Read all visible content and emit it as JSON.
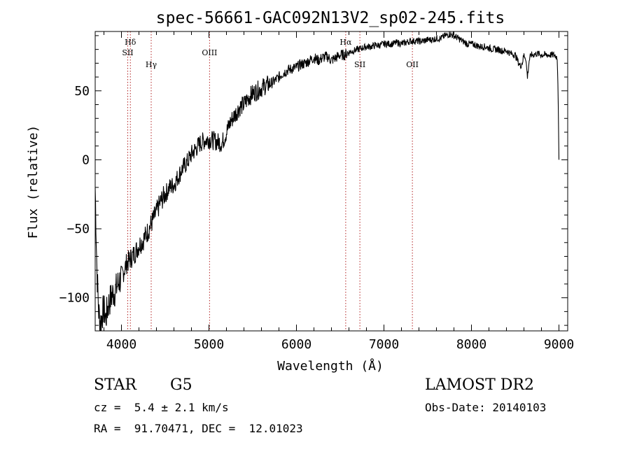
{
  "chart_data": {
    "type": "line",
    "title": "spec-56661-GAC092N13V2_sp02-245.fits",
    "xlabel": "Wavelength (Å)",
    "ylabel": "Flux (relative)",
    "xlim": [
      3700,
      9100
    ],
    "ylim": [
      -124,
      93
    ],
    "x_ticks": [
      4000,
      5000,
      6000,
      7000,
      8000,
      9000
    ],
    "y_ticks": [
      -100,
      -50,
      0,
      50
    ],
    "x_tick_labels": [
      "4000",
      "5000",
      "6000",
      "7000",
      "8000",
      "9000"
    ],
    "y_tick_labels": [
      "−100",
      "−50",
      "0",
      "50"
    ],
    "grid": false,
    "line_color": "#000000",
    "marker_line_color": "#b22222",
    "series": [
      {
        "x": [
          3700,
          3720,
          3740,
          3760,
          3780,
          3800,
          3820,
          3850,
          3880,
          3900,
          3930,
          3960,
          4000,
          4030,
          4060,
          4100,
          4150,
          4200,
          4250,
          4300,
          4350,
          4400,
          4450,
          4500,
          4550,
          4600,
          4650,
          4700,
          4750,
          4800,
          4850,
          4900,
          4950,
          5000,
          5050,
          5100,
          5150,
          5200,
          5250,
          5300,
          5350,
          5400,
          5450,
          5500,
          5550,
          5600,
          5650,
          5700,
          5750,
          5800,
          5850,
          5900,
          5950,
          6000,
          6050,
          6100,
          6150,
          6200,
          6250,
          6300,
          6350,
          6400,
          6450,
          6500,
          6550,
          6600,
          6650,
          6700,
          6750,
          6800,
          6850,
          6900,
          6950,
          7000,
          7050,
          7100,
          7150,
          7200,
          7250,
          7300,
          7350,
          7400,
          7450,
          7500,
          7550,
          7600,
          7650,
          7700,
          7750,
          7800,
          7850,
          7900,
          7950,
          8000,
          8050,
          8100,
          8150,
          8200,
          8250,
          8300,
          8350,
          8400,
          8450,
          8500,
          8540,
          8560,
          8580,
          8600,
          8620,
          8640,
          8660,
          8680,
          8700,
          8750,
          8800,
          8850,
          8900,
          8950,
          8980,
          8990,
          9000
        ],
        "y": [
          -20,
          -80,
          -110,
          -118,
          -112,
          -108,
          -115,
          -105,
          -100,
          -97,
          -95,
          -90,
          -85,
          -80,
          -75,
          -72,
          -68,
          -62,
          -58,
          -52,
          -45,
          -38,
          -30,
          -25,
          -20,
          -18,
          -12,
          -6,
          -2,
          4,
          8,
          12,
          14,
          15,
          14,
          13,
          12,
          20,
          28,
          33,
          38,
          40,
          45,
          48,
          50,
          52,
          54,
          55,
          57,
          60,
          63,
          65,
          66,
          67,
          69,
          70,
          72,
          74,
          72,
          74,
          75,
          72,
          74,
          76,
          76,
          78,
          79,
          80,
          81,
          82,
          82,
          83,
          83,
          84,
          84,
          84,
          85,
          84,
          85,
          86,
          86,
          86,
          86,
          87,
          87,
          88,
          88,
          90,
          91,
          90,
          88,
          86,
          84,
          84,
          83,
          82,
          82,
          81,
          80,
          80,
          79,
          79,
          77,
          76,
          70,
          68,
          70,
          76,
          74,
          60,
          72,
          76,
          76,
          77,
          76,
          76,
          76,
          76,
          74,
          50,
          0
        ]
      }
    ],
    "line_markers": [
      {
        "name": "Hδ",
        "x": 4102,
        "label_pos": "top"
      },
      {
        "name": "SII",
        "x": 4072,
        "label_pos": "top2"
      },
      {
        "name": "Hγ",
        "x": 4340,
        "label_pos": "mid"
      },
      {
        "name": "OIII",
        "x": 5007,
        "label_pos": "top2"
      },
      {
        "name": "Hα",
        "x": 6563,
        "label_pos": "top"
      },
      {
        "name": "OII",
        "x": 7325,
        "label_pos": "mid"
      },
      {
        "name": "SII",
        "x": 6725,
        "label_pos": "mid"
      }
    ]
  },
  "info": {
    "object_class": "STAR",
    "subclass": "G5",
    "redshift": "cz =  5.4 ± 2.1 km/s",
    "coords": "RA =  91.70471, DEC =  12.01023",
    "survey": "LAMOST DR2",
    "obs_date": "Obs-Date: 20140103"
  }
}
